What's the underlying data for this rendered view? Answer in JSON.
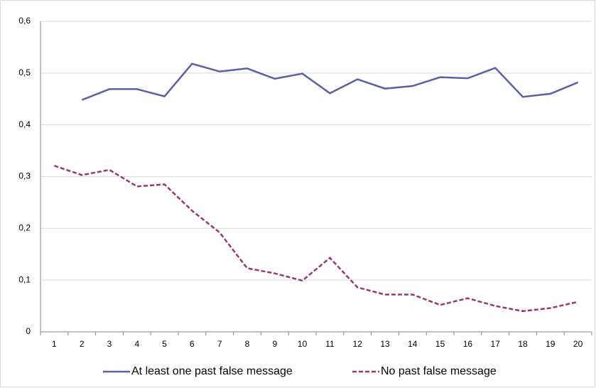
{
  "chart_data": {
    "type": "line",
    "categories": [
      "1",
      "2",
      "3",
      "4",
      "5",
      "6",
      "7",
      "8",
      "9",
      "10",
      "11",
      "12",
      "13",
      "14",
      "15",
      "16",
      "17",
      "18",
      "19",
      "20"
    ],
    "series": [
      {
        "name": "At least one past false message",
        "color": "#5f5f9e",
        "dash": false,
        "values": [
          null,
          0.448,
          0.469,
          0.469,
          0.455,
          0.518,
          0.503,
          0.509,
          0.489,
          0.499,
          0.461,
          0.488,
          0.47,
          0.475,
          0.492,
          0.49,
          0.51,
          0.454,
          0.46,
          0.482
        ]
      },
      {
        "name": "No past false message",
        "color": "#943c69",
        "dash": true,
        "values": [
          0.321,
          0.303,
          0.313,
          0.281,
          0.285,
          0.234,
          0.192,
          0.123,
          0.113,
          0.099,
          0.143,
          0.086,
          0.072,
          0.072,
          0.052,
          0.065,
          0.05,
          0.04,
          0.046,
          0.058
        ]
      }
    ],
    "ylim": [
      0,
      0.6
    ],
    "yticks": [
      0,
      {
        "value": 0.1,
        "label": "0,1"
      },
      {
        "value": 0.2,
        "label": "0,2"
      },
      {
        "value": 0.3,
        "label": "0,3"
      },
      {
        "value": 0.4,
        "label": "0,4"
      },
      {
        "value": 0.5,
        "label": "0,5"
      },
      {
        "value": 0.6,
        "label": "0,6"
      }
    ],
    "grid": true
  }
}
